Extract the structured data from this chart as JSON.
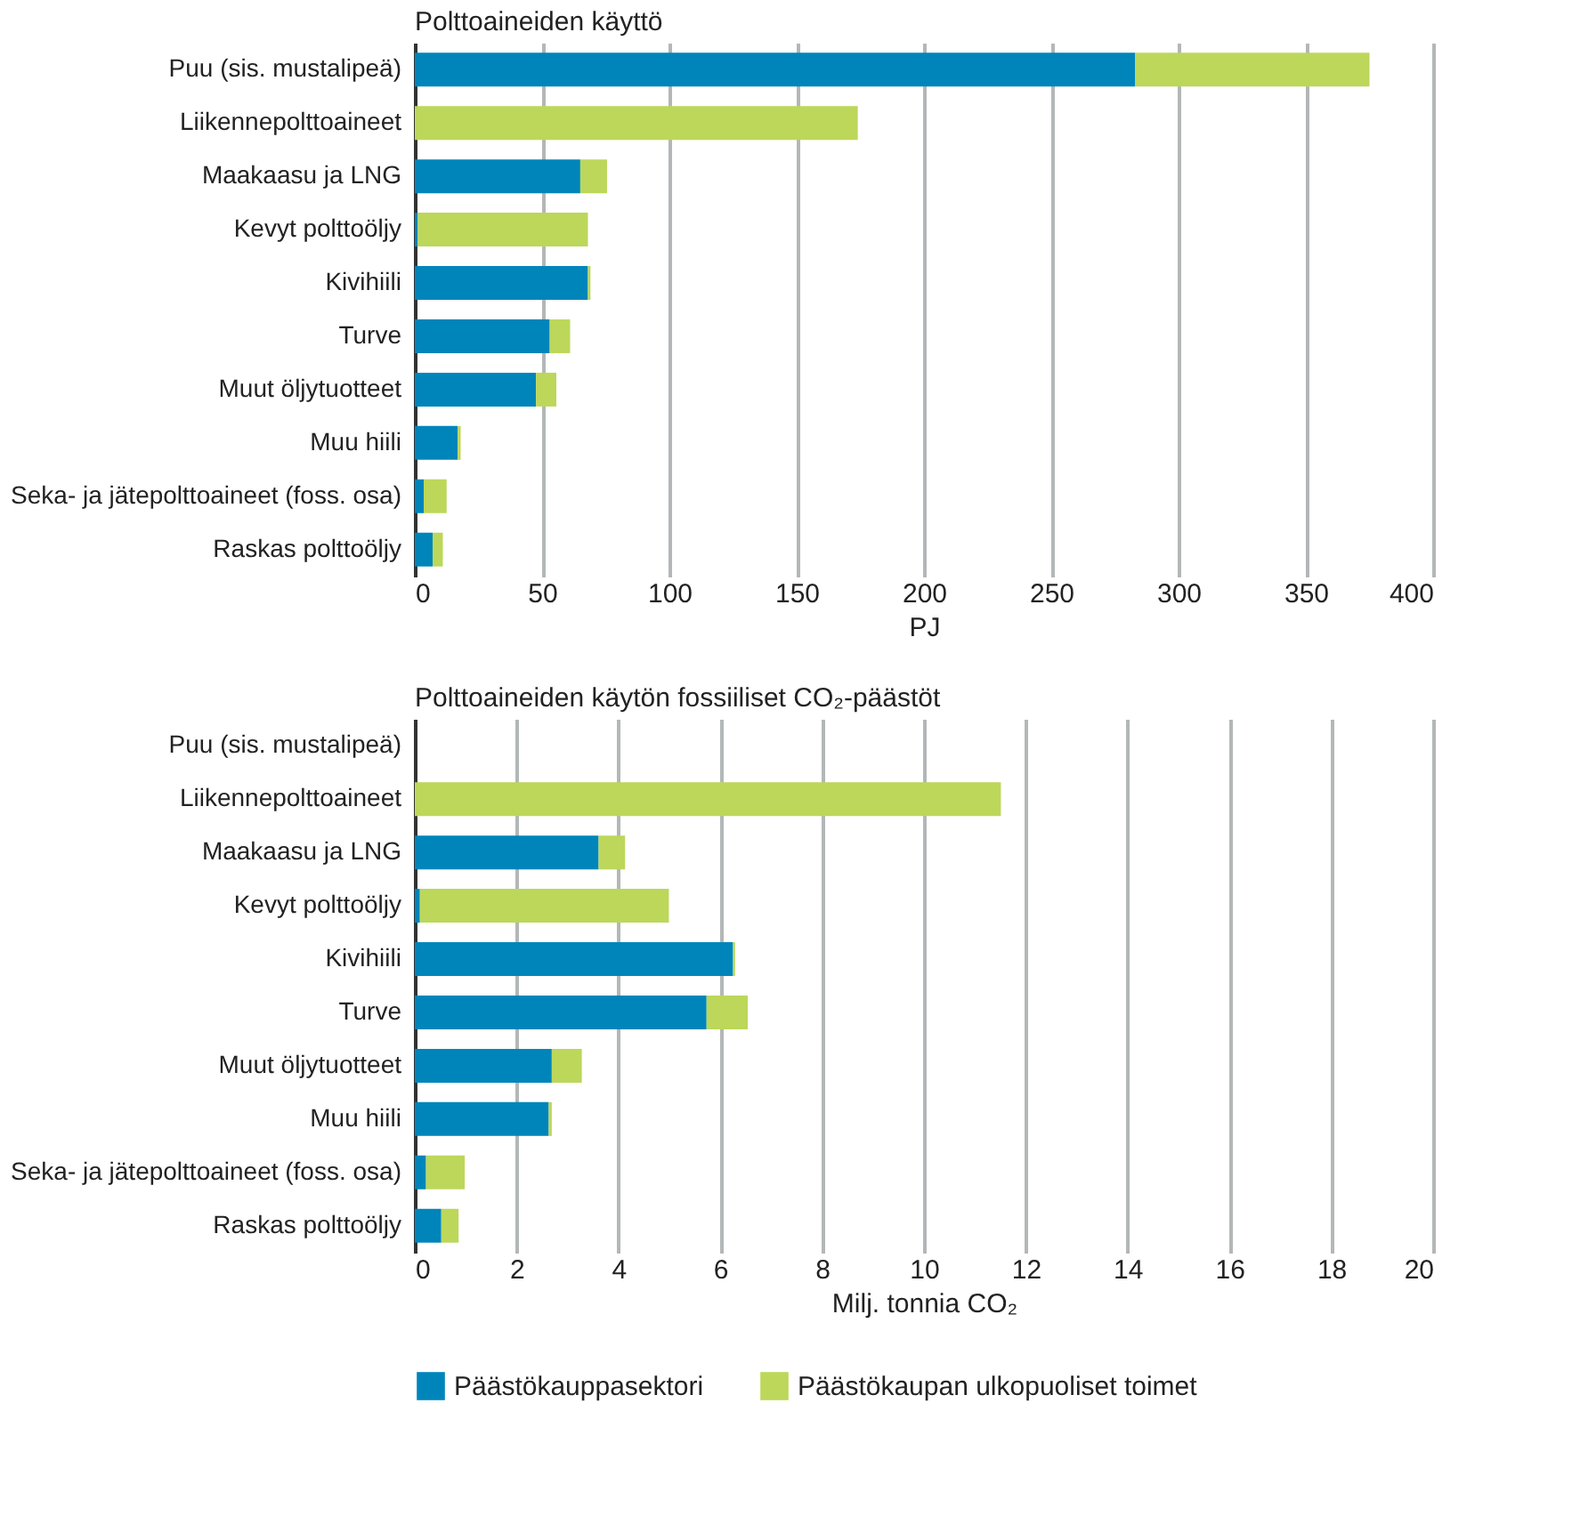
{
  "chart_data": [
    {
      "type": "bar",
      "orientation": "horizontal",
      "stacked": true,
      "title": "Polttoaineiden käyttö",
      "xlabel": "PJ",
      "categories": [
        "Puu (sis. mustalipeä)",
        "Liikennepolttoaineet",
        "Maakaasu ja LNG",
        "Kevyt polttoöljy",
        "Kivihiili",
        "Turve",
        "Muut öljytuotteet",
        "Muu hiili",
        "Seka- ja jätepolttoaineet (foss. osa)",
        "Raskas polttoöljy"
      ],
      "series": [
        {
          "color": "#0085ba",
          "values": [
            283,
            0,
            65,
            1.2,
            68,
            53,
            47.6,
            16.8,
            3.5,
            7
          ]
        },
        {
          "color": "#bcd75a",
          "values": [
            92,
            174,
            10.5,
            66.8,
            1,
            8,
            8,
            1.2,
            9,
            4
          ]
        }
      ],
      "xlim": [
        0,
        400
      ],
      "xticks": [
        0,
        50,
        100,
        150,
        200,
        250,
        300,
        350,
        400
      ],
      "grid": "x",
      "legend": false
    },
    {
      "type": "bar",
      "orientation": "horizontal",
      "stacked": true,
      "title": "Polttoaineiden käytön fossiiliset CO₂-päästöt",
      "xlabel": "Milj. tonnia CO₂",
      "categories": [
        "Puu (sis. mustalipeä)",
        "Liikennepolttoaineet",
        "Maakaasu ja LNG",
        "Kevyt polttoöljy",
        "Kivihiili",
        "Turve",
        "Muut öljytuotteet",
        "Muu hiili",
        "Seka- ja jätepolttoaineet (foss. osa)",
        "Raskas polttoöljy"
      ],
      "series": [
        {
          "name": "Päästökauppasektori",
          "color": "#0085ba",
          "values": [
            0,
            0,
            3.61,
            0.1,
            6.25,
            5.73,
            2.69,
            2.63,
            0.22,
            0.52
          ]
        },
        {
          "name": "Päästökaupan ulkopuoliset toimet",
          "color": "#bcd75a",
          "values": [
            0,
            11.51,
            0.52,
            4.89,
            0.04,
            0.81,
            0.59,
            0.06,
            0.76,
            0.34
          ]
        }
      ],
      "xlim": [
        0,
        20
      ],
      "xticks": [
        0,
        2,
        4,
        6,
        8,
        10,
        12,
        14,
        16,
        18,
        20
      ],
      "grid": "x",
      "legend": "bottom"
    }
  ]
}
